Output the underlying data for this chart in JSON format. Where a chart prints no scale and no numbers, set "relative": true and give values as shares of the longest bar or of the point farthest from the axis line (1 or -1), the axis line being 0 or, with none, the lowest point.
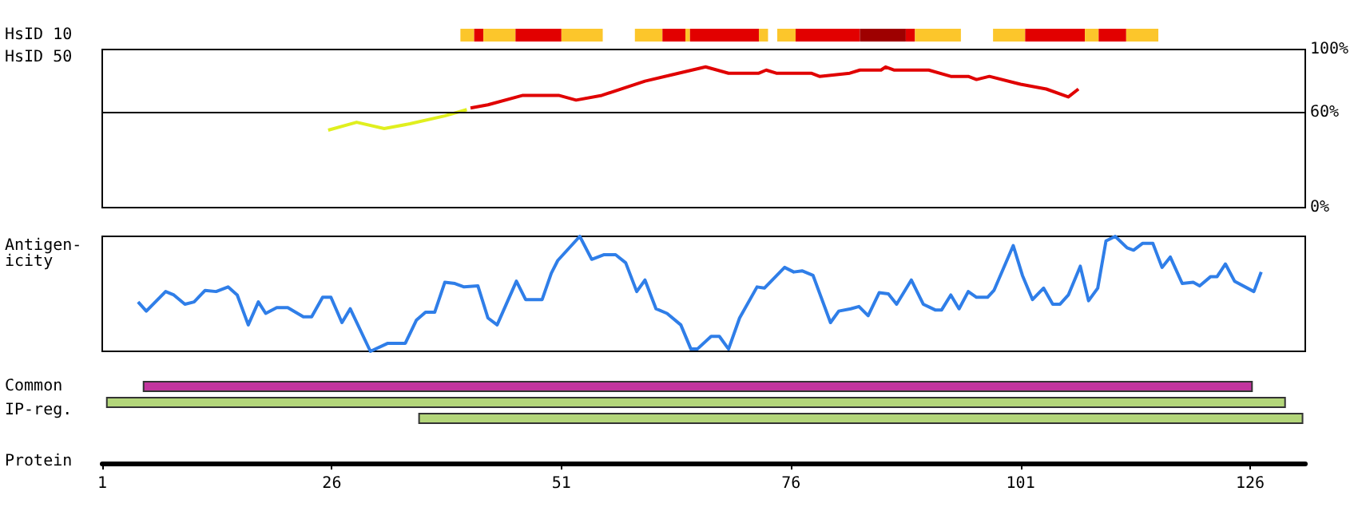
{
  "chart_data": [
    {
      "type": "bar",
      "orientation": "horizontal",
      "categories": [
        "HsID 10",
        "Common",
        "IP-reg."
      ],
      "xlabel": "Protein",
      "xlim": [
        1,
        132
      ],
      "xticks": [
        1,
        26,
        51,
        76,
        101,
        126
      ],
      "series": [
        {
          "color": "#fcc62b",
          "base": [
            40,
            null,
            null
          ],
          "values": [
            1.5,
            null,
            null
          ]
        },
        {
          "color": "#e20000",
          "base": [
            41.5,
            null,
            null
          ],
          "values": [
            1,
            null,
            null
          ]
        },
        {
          "color": "#fcc62b",
          "base": [
            42.5,
            null,
            null
          ],
          "values": [
            3.5,
            null,
            null
          ]
        },
        {
          "color": "#e20000",
          "base": [
            46,
            null,
            null
          ],
          "values": [
            5,
            null,
            null
          ]
        },
        {
          "color": "#fcc62b",
          "base": [
            51,
            null,
            null
          ],
          "values": [
            4.5,
            null,
            null
          ]
        },
        {
          "color": "#fcc62b",
          "base": [
            59,
            null,
            null
          ],
          "values": [
            3,
            null,
            null
          ]
        },
        {
          "color": "#e20000",
          "base": [
            62,
            null,
            null
          ],
          "values": [
            2.5,
            null,
            null
          ]
        },
        {
          "color": "#fcc62b",
          "base": [
            64.5,
            null,
            null
          ],
          "values": [
            0.5,
            null,
            null
          ]
        },
        {
          "color": "#e20000",
          "base": [
            65,
            null,
            null
          ],
          "values": [
            7.5,
            null,
            null
          ]
        },
        {
          "color": "#fcc62b",
          "base": [
            72.5,
            null,
            null
          ],
          "values": [
            1,
            null,
            null
          ]
        },
        {
          "color": "#fcc62b",
          "base": [
            74.5,
            null,
            null
          ],
          "values": [
            2,
            null,
            null
          ]
        },
        {
          "color": "#e20000",
          "base": [
            76.5,
            null,
            null
          ],
          "values": [
            7,
            null,
            null
          ]
        },
        {
          "color": "#9e0000",
          "base": [
            83.5,
            null,
            null
          ],
          "values": [
            5,
            null,
            null
          ]
        },
        {
          "color": "#e20000",
          "base": [
            88.5,
            null,
            null
          ],
          "values": [
            1,
            null,
            null
          ]
        },
        {
          "color": "#fcc62b",
          "base": [
            89.5,
            null,
            null
          ],
          "values": [
            5,
            null,
            null
          ]
        },
        {
          "color": "#fcc62b",
          "base": [
            98,
            null,
            null
          ],
          "values": [
            3.5,
            null,
            null
          ]
        },
        {
          "color": "#e20000",
          "base": [
            101.5,
            null,
            null
          ],
          "values": [
            6.5,
            null,
            null
          ]
        },
        {
          "color": "#fcc62b",
          "base": [
            108,
            null,
            null
          ],
          "values": [
            1.5,
            null,
            null
          ]
        },
        {
          "color": "#e20000",
          "base": [
            109.5,
            null,
            null
          ],
          "values": [
            3,
            null,
            null
          ]
        },
        {
          "color": "#fcc62b",
          "base": [
            112.5,
            null,
            null
          ],
          "values": [
            3.5,
            null,
            null
          ]
        },
        {
          "color": "#c2359e",
          "base": [
            null,
            5.5,
            null
          ],
          "values": [
            null,
            120.7,
            null
          ]
        },
        {
          "color": "#b3d67a",
          "base": [
            null,
            null,
            1.5
          ],
          "values": [
            null,
            null,
            128.3
          ]
        },
        {
          "color": "#b3d67a",
          "base": [
            null,
            null,
            35.5
          ],
          "values": [
            null,
            null,
            96.2
          ]
        }
      ]
    },
    {
      "type": "line",
      "ylabel": "HsID 50",
      "xlim": [
        1,
        132
      ],
      "ylim": [
        0,
        100
      ],
      "yticks": [
        {
          "value": 0,
          "label": "0%"
        },
        {
          "value": 60,
          "label": "60%"
        },
        {
          "value": 100,
          "label": "100%"
        }
      ],
      "tick_labels": "y",
      "ref_lines": [
        {
          "axis": "y",
          "value": 60
        }
      ],
      "series": [
        {
          "color": "#e0ef1e",
          "x": [
            25.6,
            28.7,
            31.7,
            34.5,
            38.3,
            40.7
          ],
          "values": [
            49,
            54,
            50,
            53,
            58,
            62
          ]
        },
        {
          "color": "#e00000",
          "x": [
            41.1,
            43,
            46.8,
            50.7,
            52.6,
            55.4,
            60.1,
            63,
            66.7,
            69.2,
            72.5,
            73.3,
            74.4,
            78.2,
            79.1,
            82.4,
            83.5,
            85.8,
            86.3,
            87.2,
            91,
            93.4,
            95.3,
            96.2,
            97.6,
            101,
            103.8,
            106.2,
            107.3
          ],
          "values": [
            63,
            65,
            71,
            71,
            68,
            71,
            80,
            84,
            89,
            85,
            85,
            87,
            85,
            85,
            83,
            85,
            87,
            87,
            89,
            87,
            87,
            83,
            83,
            81,
            83,
            78,
            75,
            70,
            75
          ]
        }
      ]
    },
    {
      "type": "line",
      "ylabel": "Antigen-\nicity",
      "relative": true,
      "xlim": [
        1,
        132
      ],
      "tick_labels": false,
      "series": [
        {
          "color": "#2f7ee8",
          "x": [
            4.9,
            5.8,
            7.9,
            8.8,
            10,
            11,
            12.2,
            13.4,
            14.7,
            15.7,
            16.9,
            18,
            18.8,
            20,
            21.2,
            22.9,
            23.8,
            25,
            25.9,
            27.1,
            28,
            30.2,
            32.1,
            34,
            35.2,
            36.2,
            37.2,
            38.3,
            39.4,
            40.4,
            41.9,
            43,
            44,
            46.1,
            47.1,
            48.9,
            49.9,
            50.6,
            53,
            54.3,
            55.6,
            56.9,
            58,
            59.2,
            60.1,
            61.3,
            62.5,
            64,
            65.1,
            65.8,
            67.3,
            68.2,
            69.2,
            70.4,
            72.3,
            73.1,
            75.3,
            76.3,
            77.2,
            78.4,
            80.3,
            81.2,
            82.5,
            83.4,
            84.4,
            85.6,
            86.6,
            87.5,
            89.1,
            90.4,
            91.7,
            92.4,
            93.4,
            94.3,
            95.3,
            96.2,
            97.4,
            98.1,
            100.2,
            101.2,
            102.3,
            103.5,
            104.5,
            105.3,
            106.2,
            107.5,
            108.4,
            109.4,
            110.3,
            111.3,
            112.6,
            113.3,
            114.3,
            115.4,
            116.4,
            117.3,
            118.6,
            119.8,
            120.5,
            121.7,
            122.4,
            123.3,
            124.3,
            126.4,
            127.2
          ],
          "values": [
            0.43,
            0.35,
            0.52,
            0.49,
            0.41,
            0.43,
            0.53,
            0.52,
            0.56,
            0.49,
            0.23,
            0.43,
            0.33,
            0.38,
            0.38,
            0.3,
            0.3,
            0.47,
            0.47,
            0.25,
            0.37,
            0,
            0.07,
            0.07,
            0.27,
            0.34,
            0.34,
            0.6,
            0.59,
            0.56,
            0.57,
            0.29,
            0.23,
            0.61,
            0.45,
            0.45,
            0.68,
            0.79,
            1,
            0.8,
            0.84,
            0.84,
            0.77,
            0.52,
            0.62,
            0.37,
            0.33,
            0.23,
            0.02,
            0.02,
            0.13,
            0.13,
            0.02,
            0.29,
            0.56,
            0.55,
            0.73,
            0.69,
            0.7,
            0.66,
            0.25,
            0.35,
            0.37,
            0.39,
            0.31,
            0.51,
            0.5,
            0.41,
            0.62,
            0.41,
            0.36,
            0.36,
            0.49,
            0.37,
            0.52,
            0.47,
            0.47,
            0.53,
            0.92,
            0.66,
            0.45,
            0.55,
            0.41,
            0.41,
            0.49,
            0.74,
            0.44,
            0.55,
            0.96,
            1,
            0.9,
            0.88,
            0.94,
            0.94,
            0.73,
            0.82,
            0.59,
            0.6,
            0.57,
            0.65,
            0.65,
            0.76,
            0.61,
            0.52,
            0.69
          ]
        }
      ]
    }
  ]
}
